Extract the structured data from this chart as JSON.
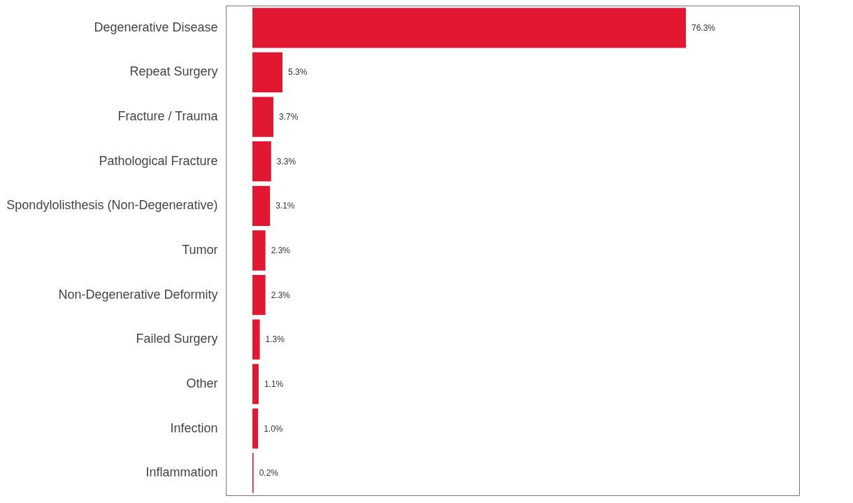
{
  "chart_data": {
    "type": "bar",
    "orientation": "horizontal",
    "categories": [
      "Degenerative Disease",
      "Repeat Surgery",
      "Fracture / Trauma",
      "Pathological Fracture",
      "Spondylolisthesis (Non-Degenerative)",
      "Tumor",
      "Non-Degenerative Deformity",
      "Failed Surgery",
      "Other",
      "Infection",
      "Inflammation"
    ],
    "values": [
      76.3,
      5.3,
      3.7,
      3.3,
      3.1,
      2.3,
      2.3,
      1.3,
      1.1,
      1.0,
      0.2
    ],
    "value_labels": [
      "76.3%",
      "5.3%",
      "3.7%",
      "3.3%",
      "3.1%",
      "2.3%",
      "2.3%",
      "1.3%",
      "1.1%",
      "1.0%",
      "0.2%"
    ],
    "color": "#e21833",
    "grid": false
  }
}
